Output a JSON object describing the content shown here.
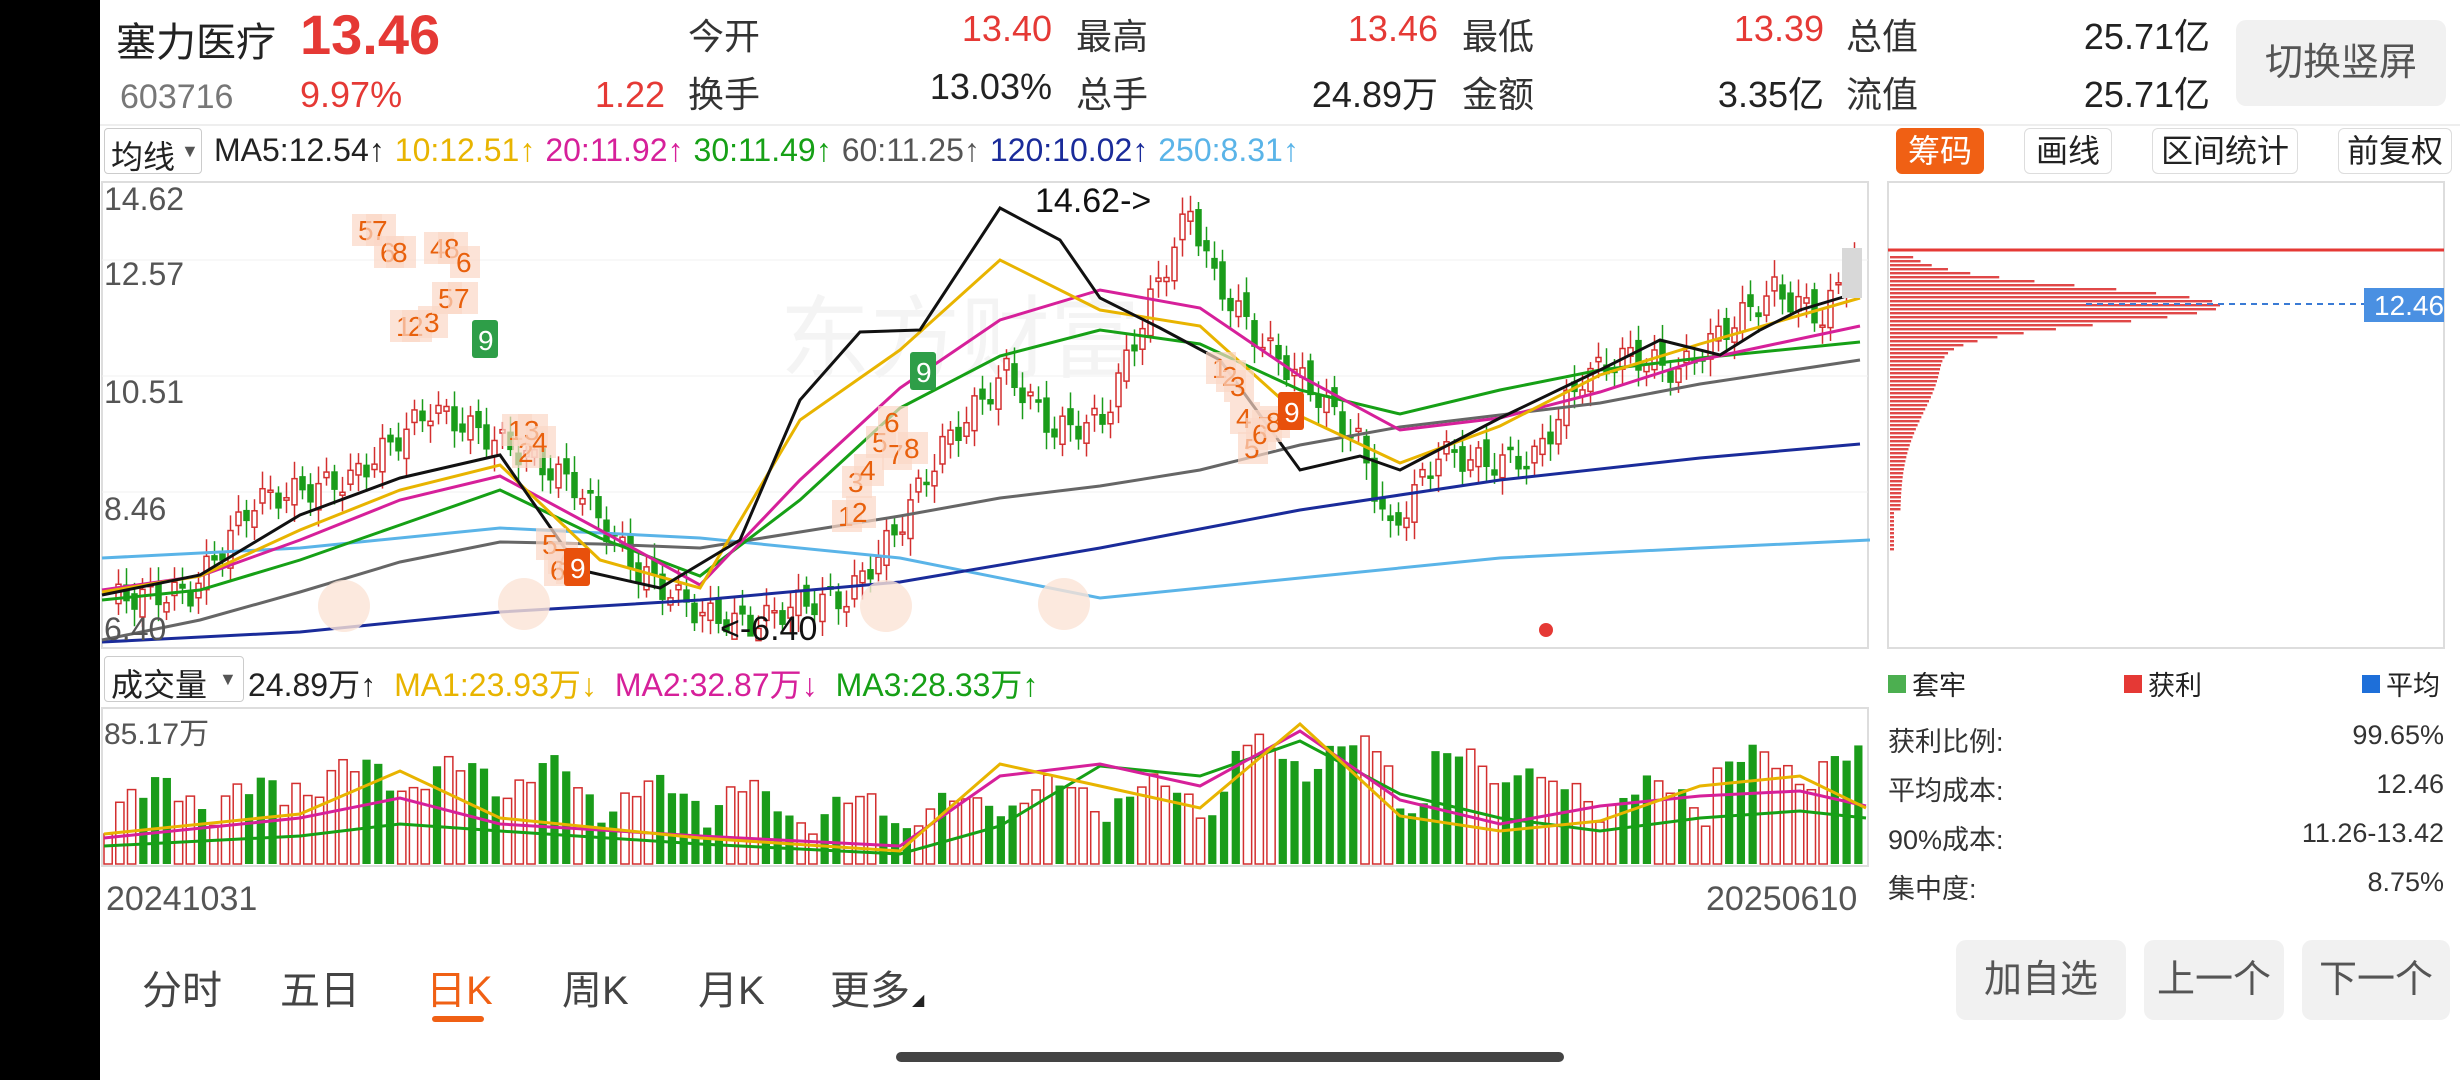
{
  "quote": {
    "name": "塞力医疗",
    "price": "13.46",
    "code": "603716",
    "change_pct": "9.97%",
    "change": "1.22",
    "fields": [
      {
        "label": "今开",
        "value": "13.40",
        "red": true
      },
      {
        "label": "最高",
        "value": "13.46",
        "red": true
      },
      {
        "label": "最低",
        "value": "13.39",
        "red": true
      },
      {
        "label": "总值",
        "value": "25.71亿",
        "red": false
      },
      {
        "label": "换手",
        "value": "13.03%",
        "red": false
      },
      {
        "label": "总手",
        "value": "24.89万",
        "red": false
      },
      {
        "label": "金额",
        "value": "3.35亿",
        "red": false
      },
      {
        "label": "流值",
        "value": "25.71亿",
        "red": false
      }
    ],
    "switch_btn": "切换竖屏"
  },
  "ma_bar": {
    "selector": "均线",
    "items": [
      {
        "text": "MA5:12.54↑",
        "color": "#222222"
      },
      {
        "text": "10:12.51↑",
        "color": "#e8b400"
      },
      {
        "text": "20:11.92↑",
        "color": "#d6209a"
      },
      {
        "text": "30:11.49↑",
        "color": "#16a016"
      },
      {
        "text": "60:11.25↑",
        "color": "#555555"
      },
      {
        "text": "120:10.02↑",
        "color": "#1a2b9a"
      },
      {
        "text": "250:8.31↑",
        "color": "#5ab4e8"
      }
    ]
  },
  "tools": {
    "chip": "筹码",
    "draw": "画线",
    "range": "区间统计",
    "adjust": "前复权"
  },
  "price_axis": [
    "14.62",
    "12.57",
    "10.51",
    "8.46",
    "6.40"
  ],
  "annotations": {
    "high": "14.62->",
    "low": "<-6.40"
  },
  "chip": {
    "current": "12.46"
  },
  "volume_bar": {
    "selector": "成交量",
    "items": [
      {
        "text": "24.89万↑",
        "color": "#222222"
      },
      {
        "text": "MA1:23.93万↓",
        "color": "#e8b400"
      },
      {
        "text": "MA2:32.87万↓",
        "color": "#d6209a"
      },
      {
        "text": "MA3:28.33万↑",
        "color": "#16a016"
      }
    ],
    "axis_max": "85.17万",
    "date_start": "20241031",
    "date_end": "20250610"
  },
  "legend": {
    "trapped": "套牢",
    "profit": "获利",
    "avg": "平均"
  },
  "stats": [
    {
      "label": "获利比例:",
      "value": "99.65%"
    },
    {
      "label": "平均成本:",
      "value": "12.46"
    },
    {
      "label": "90%成本:",
      "value": "11.26-13.42"
    },
    {
      "label": "集中度:",
      "value": "8.75%"
    }
  ],
  "tabs": [
    "分时",
    "五日",
    "日K",
    "周K",
    "月K",
    "更多"
  ],
  "actions": {
    "add": "加自选",
    "prev": "上一个",
    "next": "下一个"
  },
  "chart_data": {
    "type": "candlestick",
    "price_range": [
      6.4,
      14.62
    ],
    "high": 14.62,
    "low": 6.4,
    "last_close": 13.46,
    "volume_max": "85.17万",
    "dates": [
      "20241031",
      "20250610"
    ]
  }
}
